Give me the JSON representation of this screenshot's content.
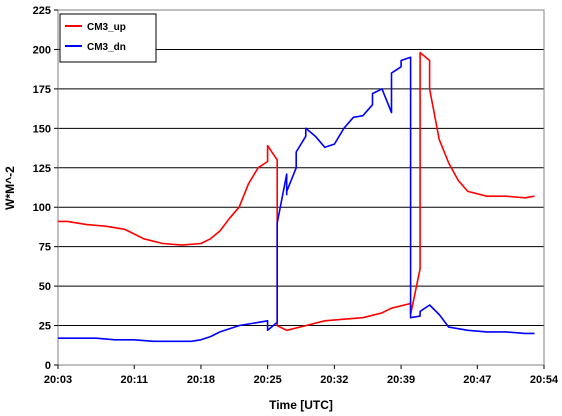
{
  "chart_data": {
    "type": "line",
    "title": "",
    "xlabel": "Time [UTC]",
    "ylabel": "W*M^-2",
    "xlim": [
      "20:03",
      "20:54"
    ],
    "ylim": [
      0,
      225
    ],
    "x_ticks": [
      "20:03",
      "20:11",
      "20:18",
      "20:25",
      "20:32",
      "20:39",
      "20:47",
      "20:54"
    ],
    "y_ticks": [
      0,
      25,
      50,
      75,
      100,
      125,
      150,
      175,
      200,
      225
    ],
    "grid": "horizontal",
    "legend_position": "top-left",
    "series": [
      {
        "name": "CM3_up",
        "color": "#ff0000",
        "x": [
          "20:03",
          "20:04",
          "20:06",
          "20:08",
          "20:10",
          "20:11",
          "20:12",
          "20:14",
          "20:16",
          "20:18",
          "20:19",
          "20:20",
          "20:21",
          "20:22",
          "20:23",
          "20:24",
          "20:25",
          "20:25",
          "20:25",
          "20:26",
          "20:26",
          "20:26",
          "20:27",
          "20:29",
          "20:31",
          "20:33",
          "20:35",
          "20:37",
          "20:38",
          "20:40",
          "20:40",
          "20:40",
          "20:41",
          "20:41",
          "20:41",
          "20:41",
          "20:42",
          "20:42",
          "20:43",
          "20:44",
          "20:45",
          "20:46",
          "20:48",
          "20:50",
          "20:52",
          "20:53"
        ],
        "values": [
          91,
          91,
          89,
          88,
          86,
          83,
          80,
          77,
          76,
          77,
          80,
          85,
          93,
          100,
          115,
          125,
          129,
          136,
          139,
          130,
          70,
          25,
          22,
          25,
          28,
          29,
          30,
          33,
          36,
          39,
          40,
          32,
          61,
          104,
          160,
          198,
          193,
          175,
          143,
          128,
          117,
          110,
          107,
          107,
          106,
          107
        ]
      },
      {
        "name": "CM3_dn",
        "color": "#0000ff",
        "x": [
          "20:03",
          "20:05",
          "20:07",
          "20:09",
          "20:11",
          "20:13",
          "20:15",
          "20:17",
          "20:18",
          "20:19",
          "20:20",
          "20:21",
          "20:22",
          "20:23",
          "20:24",
          "20:25",
          "20:25",
          "20:26",
          "20:26",
          "20:26",
          "20:27",
          "20:27",
          "20:27",
          "20:28",
          "20:28",
          "20:29",
          "20:29",
          "20:30",
          "20:31",
          "20:32",
          "20:33",
          "20:34",
          "20:35",
          "20:36",
          "20:36",
          "20:37",
          "20:38",
          "20:38",
          "20:39",
          "20:39",
          "20:40",
          "20:40",
          "20:40",
          "20:41",
          "20:41",
          "20:42",
          "20:43",
          "20:44",
          "20:46",
          "20:48",
          "20:50",
          "20:52",
          "20:53"
        ],
        "values": [
          17,
          17,
          17,
          16,
          16,
          15,
          15,
          15,
          16,
          18,
          21,
          23,
          25,
          26,
          27,
          28,
          22,
          27,
          55,
          90,
          121,
          108,
          110,
          125,
          135,
          145,
          150,
          145,
          138,
          140,
          150,
          157,
          158,
          165,
          172,
          175,
          160,
          185,
          189,
          193,
          195,
          100,
          30,
          31,
          34,
          38,
          32,
          24,
          22,
          21,
          21,
          20,
          20
        ]
      }
    ]
  }
}
